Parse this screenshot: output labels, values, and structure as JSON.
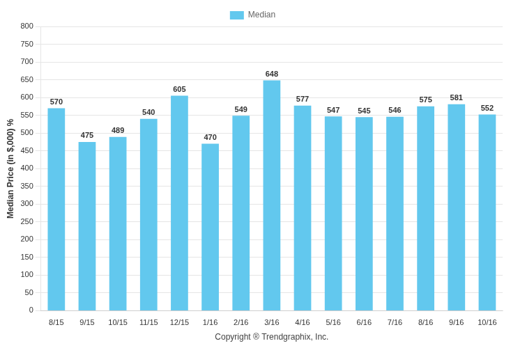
{
  "chart_data": {
    "type": "bar",
    "categories": [
      "8/15",
      "9/15",
      "10/15",
      "11/15",
      "12/15",
      "1/16",
      "2/16",
      "3/16",
      "4/16",
      "5/16",
      "6/16",
      "7/16",
      "8/16",
      "9/16",
      "10/16"
    ],
    "series": [
      {
        "name": "Median",
        "color": "#62C8EE",
        "values": [
          570,
          475,
          489,
          540,
          605,
          470,
          549,
          648,
          577,
          547,
          545,
          546,
          575,
          581,
          552
        ]
      }
    ],
    "ylabel": "Median Price (in $,000) %",
    "xlabel": "Copyright ® Trendgraphix, Inc.",
    "ylim": [
      0,
      800
    ],
    "yticks": [
      0,
      50,
      100,
      150,
      200,
      250,
      300,
      350,
      400,
      450,
      500,
      550,
      600,
      650,
      700,
      750,
      800
    ],
    "grid": true,
    "legend": "top",
    "data_labels": true
  }
}
